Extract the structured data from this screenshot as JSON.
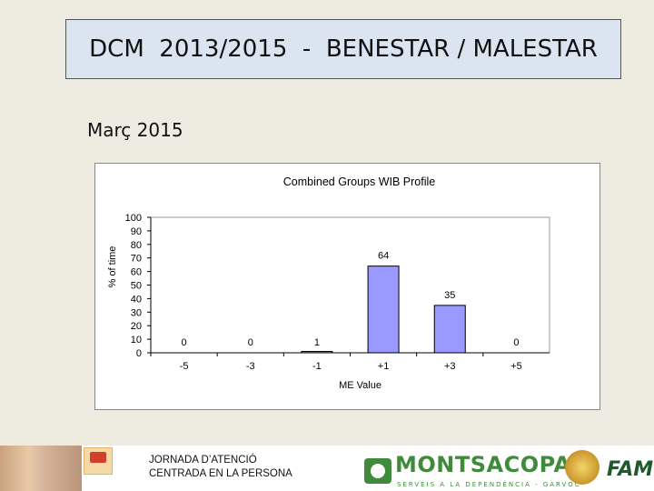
{
  "slide": {
    "title": "DCM  2013/2015  -  BENESTAR / MALESTAR",
    "subtitle": "Març 2015"
  },
  "chart_data": {
    "type": "bar",
    "title": "Combined Groups WIB Profile",
    "xlabel": "ME Value",
    "ylabel": "% of time",
    "categories": [
      "-5",
      "-3",
      "-1",
      "+1",
      "+3",
      "+5"
    ],
    "values": [
      0,
      0,
      1,
      64,
      35,
      0
    ],
    "data_labels": [
      "0",
      "0",
      "1",
      "64",
      "35",
      "0"
    ],
    "yticks": [
      "100",
      "90",
      "80",
      "70",
      "60",
      "50",
      "40",
      "30",
      "20",
      "10",
      "0"
    ],
    "ylim": [
      0,
      100
    ],
    "grid": false,
    "legend": "none",
    "bar_color": "#9999ff"
  },
  "footer": {
    "event_text": "JORNADA D’ATENCIÓ\nCENTRADA EN LA PERSONA",
    "sponsor_name": "MONTSACOPA",
    "sponsor_tagline": "SERVEIS A LA DEPENDÈNCIA - GARVOC",
    "right_logo_text": "FAM"
  }
}
